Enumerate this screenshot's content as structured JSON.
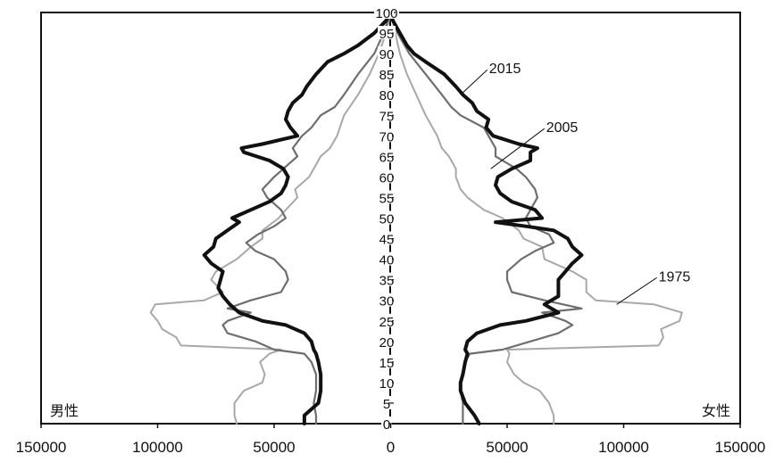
{
  "chart_data": {
    "type": "line",
    "title": "",
    "xlabel": "",
    "ylabel": "",
    "xlim": [
      -150000,
      150000
    ],
    "ylim": [
      0,
      100
    ],
    "x_ticks": [
      -150000,
      -100000,
      -50000,
      0,
      50000,
      100000,
      150000
    ],
    "x_tick_labels": [
      "150000",
      "100000",
      "50000",
      "0",
      "50000",
      "100000",
      "150000"
    ],
    "y_ticks": [
      0,
      5,
      10,
      15,
      20,
      25,
      30,
      35,
      40,
      45,
      50,
      55,
      60,
      65,
      70,
      75,
      80,
      85,
      90,
      95,
      100
    ],
    "y_tick_labels": [
      "0",
      "5",
      "10",
      "15",
      "20",
      "25",
      "30",
      "35",
      "40",
      "45",
      "50",
      "55",
      "60",
      "65",
      "70",
      "75",
      "80",
      "85",
      "90",
      "95",
      "100"
    ],
    "side_labels": {
      "left": "男性",
      "right": "女性"
    },
    "grid": false,
    "series": [
      {
        "name": "1975",
        "color": "#a8a8a8",
        "stroke": 2,
        "male": [
          [
            0,
            66000
          ],
          [
            2,
            67000
          ],
          [
            5,
            67000
          ],
          [
            8,
            63000
          ],
          [
            10,
            55000
          ],
          [
            12,
            54000
          ],
          [
            15,
            56000
          ],
          [
            17,
            52000
          ],
          [
            18,
            47000
          ],
          [
            19,
            90000
          ],
          [
            21,
            92000
          ],
          [
            23,
            98000
          ],
          [
            25,
            100000
          ],
          [
            27,
            103000
          ],
          [
            29,
            101000
          ],
          [
            30,
            80000
          ],
          [
            32,
            72000
          ],
          [
            35,
            77000
          ],
          [
            37,
            75000
          ],
          [
            40,
            66000
          ],
          [
            43,
            60000
          ],
          [
            45,
            55000
          ],
          [
            47,
            55000
          ],
          [
            50,
            48000
          ],
          [
            52,
            45000
          ],
          [
            55,
            40000
          ],
          [
            57,
            41000
          ],
          [
            60,
            35000
          ],
          [
            62,
            33000
          ],
          [
            65,
            30000
          ],
          [
            67,
            26000
          ],
          [
            70,
            23000
          ],
          [
            75,
            20000
          ],
          [
            80,
            14000
          ],
          [
            85,
            9000
          ],
          [
            90,
            5000
          ],
          [
            95,
            2000
          ],
          [
            100,
            0
          ]
        ],
        "female": [
          [
            0,
            70000
          ],
          [
            2,
            70000
          ],
          [
            5,
            68000
          ],
          [
            8,
            64000
          ],
          [
            10,
            57000
          ],
          [
            12,
            53000
          ],
          [
            15,
            50000
          ],
          [
            17,
            51000
          ],
          [
            18,
            50000
          ],
          [
            19,
            115000
          ],
          [
            21,
            117000
          ],
          [
            23,
            116000
          ],
          [
            25,
            124000
          ],
          [
            27,
            125000
          ],
          [
            29,
            113000
          ],
          [
            30,
            88000
          ],
          [
            32,
            84000
          ],
          [
            35,
            84000
          ],
          [
            37,
            78000
          ],
          [
            40,
            66000
          ],
          [
            43,
            65000
          ],
          [
            45,
            57000
          ],
          [
            47,
            55000
          ],
          [
            50,
            48000
          ],
          [
            52,
            40000
          ],
          [
            55,
            33000
          ],
          [
            57,
            30000
          ],
          [
            60,
            28000
          ],
          [
            62,
            28000
          ],
          [
            65,
            25000
          ],
          [
            67,
            22000
          ],
          [
            70,
            20000
          ],
          [
            75,
            15000
          ],
          [
            80,
            11000
          ],
          [
            85,
            7000
          ],
          [
            90,
            4000
          ],
          [
            95,
            2000
          ],
          [
            100,
            0
          ]
        ]
      },
      {
        "name": "2005",
        "color": "#6e6e6e",
        "stroke": 2.2,
        "male": [
          [
            0,
            32000
          ],
          [
            2,
            32000
          ],
          [
            5,
            33000
          ],
          [
            8,
            32000
          ],
          [
            10,
            32000
          ],
          [
            12,
            32000
          ],
          [
            15,
            34000
          ],
          [
            17,
            37000
          ],
          [
            18,
            50000
          ],
          [
            20,
            58000
          ],
          [
            22,
            70000
          ],
          [
            24,
            72000
          ],
          [
            25,
            70000
          ],
          [
            27,
            60000
          ],
          [
            28,
            70000
          ],
          [
            30,
            60000
          ],
          [
            32,
            47000
          ],
          [
            35,
            44000
          ],
          [
            37,
            45000
          ],
          [
            40,
            50000
          ],
          [
            42,
            58000
          ],
          [
            44,
            62000
          ],
          [
            46,
            57000
          ],
          [
            48,
            50000
          ],
          [
            50,
            45000
          ],
          [
            52,
            47000
          ],
          [
            55,
            53000
          ],
          [
            57,
            55000
          ],
          [
            60,
            50000
          ],
          [
            62,
            46000
          ],
          [
            65,
            40000
          ],
          [
            67,
            42000
          ],
          [
            70,
            38000
          ],
          [
            72,
            34000
          ],
          [
            75,
            30000
          ],
          [
            77,
            24000
          ],
          [
            80,
            20000
          ],
          [
            85,
            14000
          ],
          [
            90,
            7000
          ],
          [
            95,
            3000
          ],
          [
            100,
            0
          ]
        ],
        "female": [
          [
            0,
            31000
          ],
          [
            2,
            31000
          ],
          [
            5,
            31000
          ],
          [
            8,
            30000
          ],
          [
            10,
            30000
          ],
          [
            12,
            31000
          ],
          [
            15,
            32000
          ],
          [
            17,
            34000
          ],
          [
            18,
            48000
          ],
          [
            20,
            60000
          ],
          [
            22,
            72000
          ],
          [
            24,
            78000
          ],
          [
            25,
            75000
          ],
          [
            27,
            65000
          ],
          [
            28,
            82000
          ],
          [
            30,
            66000
          ],
          [
            32,
            52000
          ],
          [
            35,
            50000
          ],
          [
            37,
            50000
          ],
          [
            40,
            56000
          ],
          [
            42,
            62000
          ],
          [
            44,
            70000
          ],
          [
            46,
            68000
          ],
          [
            48,
            60000
          ],
          [
            50,
            58000
          ],
          [
            52,
            60000
          ],
          [
            55,
            63000
          ],
          [
            57,
            62000
          ],
          [
            60,
            58000
          ],
          [
            62,
            54000
          ],
          [
            65,
            45000
          ],
          [
            67,
            45000
          ],
          [
            70,
            42000
          ],
          [
            72,
            40000
          ],
          [
            75,
            30000
          ],
          [
            77,
            26000
          ],
          [
            80,
            22000
          ],
          [
            85,
            15000
          ],
          [
            90,
            8000
          ],
          [
            95,
            3000
          ],
          [
            100,
            0
          ]
        ]
      },
      {
        "name": "2015",
        "color": "#111111",
        "stroke": 4,
        "male": [
          [
            0,
            37000
          ],
          [
            2,
            37000
          ],
          [
            5,
            31000
          ],
          [
            8,
            30000
          ],
          [
            10,
            30000
          ],
          [
            12,
            30000
          ],
          [
            15,
            31000
          ],
          [
            17,
            32000
          ],
          [
            18,
            33000
          ],
          [
            20,
            34000
          ],
          [
            22,
            37000
          ],
          [
            24,
            45000
          ],
          [
            25,
            55000
          ],
          [
            27,
            65000
          ],
          [
            29,
            69000
          ],
          [
            31,
            72000
          ],
          [
            33,
            74000
          ],
          [
            35,
            73000
          ],
          [
            37,
            72000
          ],
          [
            39,
            77000
          ],
          [
            41,
            80000
          ],
          [
            43,
            76000
          ],
          [
            45,
            75000
          ],
          [
            47,
            70000
          ],
          [
            49,
            65000
          ],
          [
            50,
            68000
          ],
          [
            52,
            60000
          ],
          [
            54,
            52000
          ],
          [
            56,
            47000
          ],
          [
            58,
            45000
          ],
          [
            60,
            44000
          ],
          [
            62,
            46000
          ],
          [
            64,
            52000
          ],
          [
            66,
            63000
          ],
          [
            67,
            64000
          ],
          [
            68,
            55000
          ],
          [
            70,
            40000
          ],
          [
            72,
            43000
          ],
          [
            74,
            45000
          ],
          [
            76,
            44000
          ],
          [
            78,
            42000
          ],
          [
            80,
            38000
          ],
          [
            82,
            36000
          ],
          [
            85,
            32000
          ],
          [
            88,
            27000
          ],
          [
            90,
            20000
          ],
          [
            92,
            14000
          ],
          [
            95,
            7000
          ],
          [
            98,
            2000
          ],
          [
            100,
            0
          ]
        ],
        "female": [
          [
            0,
            38000
          ],
          [
            2,
            36000
          ],
          [
            5,
            32000
          ],
          [
            8,
            30000
          ],
          [
            10,
            30000
          ],
          [
            12,
            31000
          ],
          [
            15,
            32000
          ],
          [
            17,
            33000
          ],
          [
            18,
            32000
          ],
          [
            20,
            33000
          ],
          [
            22,
            37000
          ],
          [
            24,
            47000
          ],
          [
            25,
            58000
          ],
          [
            27,
            72000
          ],
          [
            29,
            66000
          ],
          [
            31,
            72000
          ],
          [
            33,
            72000
          ],
          [
            35,
            72000
          ],
          [
            37,
            75000
          ],
          [
            39,
            78000
          ],
          [
            41,
            82000
          ],
          [
            43,
            78000
          ],
          [
            45,
            76000
          ],
          [
            47,
            70000
          ],
          [
            48,
            58000
          ],
          [
            49,
            45000
          ],
          [
            50,
            65000
          ],
          [
            52,
            62000
          ],
          [
            54,
            52000
          ],
          [
            56,
            47000
          ],
          [
            58,
            45000
          ],
          [
            60,
            46000
          ],
          [
            62,
            52000
          ],
          [
            64,
            60000
          ],
          [
            66,
            60000
          ],
          [
            67,
            63000
          ],
          [
            68,
            55000
          ],
          [
            70,
            44000
          ],
          [
            72,
            41000
          ],
          [
            74,
            42000
          ],
          [
            76,
            37000
          ],
          [
            78,
            35000
          ],
          [
            80,
            31000
          ],
          [
            82,
            28000
          ],
          [
            85,
            23000
          ],
          [
            88,
            15000
          ],
          [
            90,
            10000
          ],
          [
            92,
            7000
          ],
          [
            95,
            4000
          ],
          [
            98,
            1000
          ],
          [
            100,
            0
          ]
        ]
      }
    ],
    "annotations": [
      {
        "text": "2015",
        "series": "2015",
        "y": 80,
        "x": 30000
      },
      {
        "text": "2005",
        "series": "2005",
        "y": 62,
        "x": 43000
      },
      {
        "text": "1975",
        "series": "1975",
        "y": 29,
        "x": 97000
      }
    ]
  }
}
